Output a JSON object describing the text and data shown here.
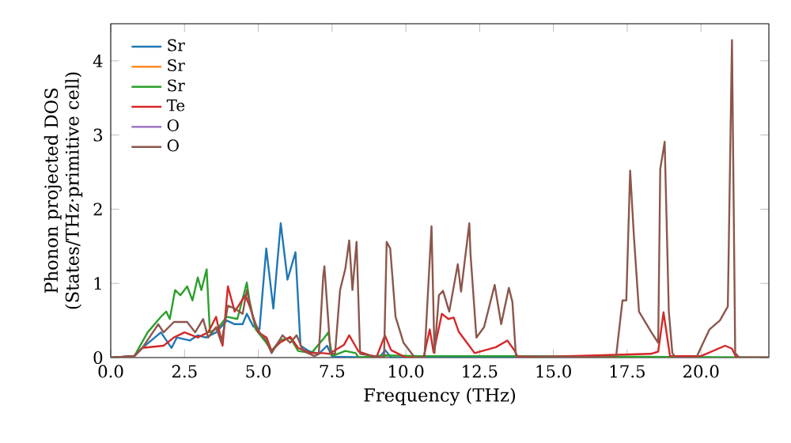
{
  "chart_data": {
    "type": "line",
    "xlabel": "Frequency (THz)",
    "ylabel": "Phonon projected DOS\n(States/THz·primitive cell)",
    "xlim": [
      0,
      22.3
    ],
    "ylim": [
      0,
      4.5
    ],
    "xticks": [
      {
        "value": 0,
        "label": "0.0"
      },
      {
        "value": 2.5,
        "label": "2.5"
      },
      {
        "value": 5,
        "label": "5.0"
      },
      {
        "value": 7.5,
        "label": "7.5"
      },
      {
        "value": 10,
        "label": "10.0"
      },
      {
        "value": 12.5,
        "label": "12.5"
      },
      {
        "value": 15,
        "label": "15.0"
      },
      {
        "value": 17.5,
        "label": "17.5"
      },
      {
        "value": 20,
        "label": "20.0"
      }
    ],
    "yticks": [
      0,
      1,
      2,
      3,
      4
    ],
    "legend": "top left",
    "grid": false,
    "marker": "none",
    "line_style": "solid",
    "series": [
      {
        "name": "Sr",
        "color": "#1f77b4",
        "x": [
          0,
          0.8,
          1.07,
          1.7,
          2.06,
          2.24,
          2.68,
          2.95,
          3.22,
          3.57,
          3.93,
          4.2,
          4.47,
          4.61,
          4.83,
          5.04,
          5.27,
          5.51,
          5.76,
          5.99,
          6.26,
          6.43,
          6.7,
          7.05,
          7.33,
          7.5,
          9.1,
          9.3,
          9.5,
          10,
          22.3
        ],
        "values": [
          0,
          0.02,
          0.13,
          0.34,
          0.13,
          0.27,
          0.23,
          0.3,
          0.27,
          0.34,
          0.5,
          0.45,
          0.45,
          0.59,
          0.42,
          0.38,
          1.47,
          0.66,
          1.81,
          1.05,
          1.42,
          0.16,
          0.09,
          0.05,
          0.16,
          0.01,
          0,
          0.1,
          0,
          0,
          0
        ]
      },
      {
        "name": "Sr",
        "color": "#ff7f0e",
        "values": [
          null
        ]
      },
      {
        "name": "Sr",
        "color": "#2ca02c",
        "x": [
          0,
          0.8,
          1.25,
          1.7,
          1.88,
          2.0,
          2.18,
          2.36,
          2.59,
          2.77,
          2.95,
          3.07,
          3.25,
          3.36,
          3.66,
          3.93,
          4.29,
          4.61,
          4.7,
          4.91,
          5.27,
          5.45,
          5.73,
          6.08,
          6.35,
          6.8,
          7.24,
          7.37,
          7.5,
          7.95,
          8.3,
          8.4,
          9.3,
          10.5,
          13.7,
          22.3
        ],
        "values": [
          0,
          0.02,
          0.34,
          0.55,
          0.62,
          0.52,
          0.91,
          0.84,
          0.96,
          0.77,
          1.08,
          0.91,
          1.19,
          0.34,
          0.41,
          0.55,
          0.52,
          1.01,
          0.77,
          0.38,
          0.2,
          0.09,
          0.23,
          0.27,
          0.09,
          0.06,
          0.27,
          0.34,
          0.02,
          0.09,
          0.06,
          0,
          0.03,
          0.02,
          0.02,
          0
        ]
      },
      {
        "name": "Te",
        "color": "#d62728",
        "x": [
          0,
          0.8,
          1.07,
          1.79,
          2.14,
          2.5,
          2.95,
          3.3,
          3.57,
          3.79,
          3.97,
          4.2,
          4.56,
          4.7,
          5.0,
          5.28,
          5.45,
          5.73,
          6.08,
          6.35,
          6.8,
          7.2,
          7.4,
          7.9,
          8.08,
          8.4,
          9.0,
          9.29,
          9.5,
          10.0,
          10.6,
          10.81,
          10.94,
          11.22,
          11.44,
          11.62,
          11.79,
          12.07,
          12.33,
          13.05,
          13.44,
          13.69,
          13.8,
          18.3,
          18.55,
          18.73,
          18.95,
          20.0,
          20.82,
          21.05,
          21.2,
          22.3
        ],
        "values": [
          0,
          0.02,
          0.13,
          0.16,
          0.27,
          0.34,
          0.27,
          0.34,
          0.55,
          0.16,
          0.96,
          0.62,
          0.84,
          0.7,
          0.34,
          0.27,
          0.09,
          0.2,
          0.28,
          0.13,
          0.06,
          0.06,
          0.05,
          0.17,
          0.3,
          0.08,
          0,
          0.3,
          0.1,
          0,
          0,
          0.38,
          0.07,
          0.59,
          0.52,
          0.54,
          0.35,
          0.2,
          0.06,
          0.14,
          0.23,
          0.09,
          0,
          0.05,
          0.08,
          0.61,
          0.02,
          0.02,
          0.16,
          0.12,
          0,
          0
        ]
      },
      {
        "name": "O",
        "color": "#9467bd",
        "values": [
          null
        ]
      },
      {
        "name": "O",
        "color": "#8c564b",
        "x": [
          0,
          0.8,
          1.07,
          1.61,
          1.79,
          2.14,
          2.59,
          2.86,
          3.13,
          3.3,
          3.57,
          3.75,
          3.97,
          4.2,
          4.47,
          4.61,
          4.83,
          5.04,
          5.27,
          5.45,
          5.82,
          6.08,
          6.3,
          6.52,
          6.9,
          7.05,
          7.2,
          7.24,
          7.45,
          7.6,
          7.77,
          7.95,
          8.08,
          8.19,
          8.33,
          8.45,
          9.26,
          9.35,
          9.47,
          9.65,
          9.92,
          10.3,
          10.63,
          10.87,
          10.97,
          11.12,
          11.26,
          11.47,
          11.76,
          11.87,
          12.15,
          12.19,
          12.39,
          12.65,
          13.01,
          13.23,
          13.49,
          13.61,
          13.73,
          17.12,
          17.34,
          17.47,
          17.6,
          17.73,
          17.9,
          18.32,
          18.55,
          18.62,
          18.77,
          18.91,
          19.03,
          19.15,
          19.84,
          20.29,
          20.64,
          20.91,
          21.05,
          21.16,
          21.3,
          22.3
        ],
        "values": [
          0,
          0.02,
          0.13,
          0.45,
          0.34,
          0.48,
          0.48,
          0.34,
          0.52,
          0.27,
          0.41,
          0.2,
          0.7,
          0.66,
          0.59,
          0.91,
          0.52,
          0.34,
          0.23,
          0.06,
          0.3,
          0.2,
          0.3,
          0.09,
          0.02,
          0.05,
          1.1,
          1.23,
          0.05,
          0.05,
          0.91,
          1.2,
          1.58,
          0.91,
          1.56,
          0.05,
          0,
          1.56,
          1.47,
          0.55,
          0.2,
          0,
          0,
          1.77,
          0.06,
          0.84,
          0.9,
          0.62,
          1.26,
          0.89,
          1.81,
          1.4,
          0.27,
          0.41,
          0.98,
          0.45,
          0.94,
          0.75,
          0.02,
          0,
          0.77,
          0.77,
          2.52,
          1.62,
          0.62,
          0.34,
          0.2,
          2.54,
          2.91,
          0.62,
          0.06,
          0,
          0,
          0.38,
          0.5,
          0.69,
          4.28,
          0.06,
          0,
          0
        ]
      }
    ]
  }
}
